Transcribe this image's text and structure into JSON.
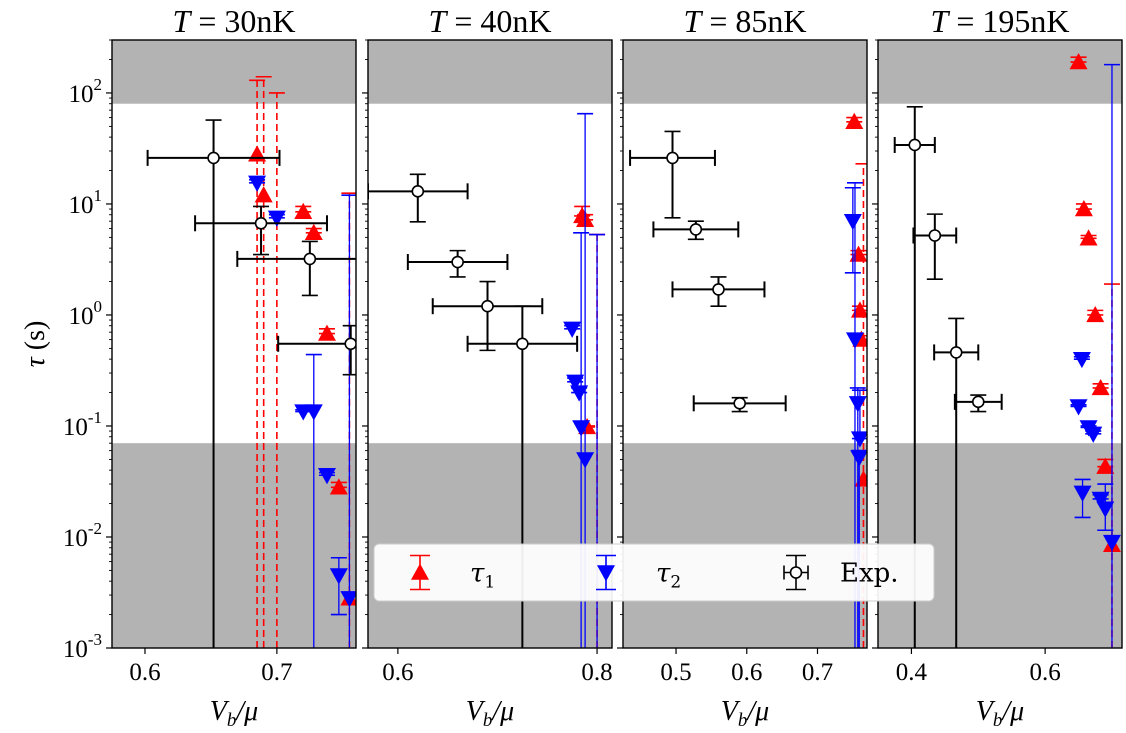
{
  "chart_data": {
    "type": "scatter",
    "y_label": "τ (s)",
    "y_scale": "log",
    "ylim": [
      0.001,
      300
    ],
    "y_ticks": [
      {
        "value": 0.001,
        "label": "10",
        "exp": "-3"
      },
      {
        "value": 0.01,
        "label": "10",
        "exp": "-2"
      },
      {
        "value": 0.1,
        "label": "10",
        "exp": "-1"
      },
      {
        "value": 1,
        "label": "10",
        "exp": "0"
      },
      {
        "value": 10,
        "label": "10",
        "exp": "1"
      },
      {
        "value": 100,
        "label": "10",
        "exp": "2"
      }
    ],
    "shaded_bands": [
      [
        80,
        300
      ],
      [
        0.001,
        0.07
      ]
    ],
    "colors": {
      "tau1": "#ff0000",
      "tau2": "#0000ff",
      "exp": "#000000",
      "shade": "#b3b3b3"
    },
    "legend": {
      "placement": "lower-right",
      "entries": [
        {
          "name": "τ",
          "sub": "1",
          "marker": "triangle-up",
          "color": "#ff0000"
        },
        {
          "name": "τ",
          "sub": "2",
          "marker": "triangle-down",
          "color": "#0000ff"
        },
        {
          "name": "Exp.",
          "sub": "",
          "marker": "circle-open",
          "color": "#000000"
        }
      ]
    },
    "panels": [
      {
        "title_var": "T",
        "title_value": "= 30nK",
        "xlabel": "V_b/μ",
        "xlim": [
          0.575,
          0.76
        ],
        "x_ticks": [
          {
            "value": 0.6,
            "label": "0.6"
          },
          {
            "value": 0.7,
            "label": "0.7"
          }
        ],
        "tau1": [
          {
            "x": 0.685,
            "y": 28,
            "yerr_lo": null,
            "yerr_hi": 130,
            "dashed": true
          },
          {
            "x": 0.69,
            "y": 12,
            "yerr_lo": null,
            "yerr_hi": 140,
            "dashed": true
          },
          {
            "x": 0.72,
            "y": 8.5,
            "yerr_lo": null,
            "yerr_hi": 9.5
          },
          {
            "x": 0.7,
            "y": null,
            "yerr_lo": null,
            "yerr_hi": 100,
            "dashed": true
          },
          {
            "x": 0.728,
            "y": 5.5,
            "yerr_lo": null,
            "yerr_hi": 6.0
          },
          {
            "x": 0.738,
            "y": 0.68,
            "yerr_lo": null,
            "yerr_hi": 0.75
          },
          {
            "x": 0.747,
            "y": 0.028,
            "yerr_lo": null,
            "yerr_hi": 0.031
          },
          {
            "x": 0.755,
            "y": 0.0028,
            "yerr_lo": null,
            "yerr_hi": 12.5,
            "dashed": true
          }
        ],
        "tau2": [
          {
            "x": 0.685,
            "y": 15.5,
            "yerr_lo": null,
            "yerr_hi": 16.5
          },
          {
            "x": 0.7,
            "y": 7.5,
            "yerr_lo": null,
            "yerr_hi": 8.0
          },
          {
            "x": 0.72,
            "y": 0.135,
            "yerr_lo": null,
            "yerr_hi": 0.14
          },
          {
            "x": 0.728,
            "y": 0.135,
            "yerr_lo": 0.001,
            "yerr_hi": 0.44
          },
          {
            "x": 0.738,
            "y": 0.036,
            "yerr_lo": null,
            "yerr_hi": 0.038
          },
          {
            "x": 0.747,
            "y": 0.0045,
            "yerr_lo": 0.002,
            "yerr_hi": 0.0065
          },
          {
            "x": 0.755,
            "y": 0.0028,
            "yerr_lo": 0.001,
            "yerr_hi": 12
          }
        ],
        "exp": [
          {
            "x": 0.652,
            "y": 26,
            "xerr": 0.05,
            "yerr_lo": 0.001,
            "yerr_hi": 57
          },
          {
            "x": 0.688,
            "y": 6.7,
            "xerr": 0.05,
            "yerr_lo": 3.5,
            "yerr_hi": 9.5
          },
          {
            "x": 0.725,
            "y": 3.2,
            "xerr": 0.055,
            "yerr_lo": 1.5,
            "yerr_hi": 4.6
          },
          {
            "x": 0.756,
            "y": 0.55,
            "xerr": 0.055,
            "yerr_lo": 0.29,
            "yerr_hi": 0.8
          }
        ]
      },
      {
        "title_var": "T",
        "title_value": "= 40nK",
        "xlabel": "V_b/μ",
        "xlim": [
          0.57,
          0.815
        ],
        "x_ticks": [
          {
            "value": 0.6,
            "label": "0.6"
          },
          {
            "value": 0.8,
            "label": "0.8"
          }
        ],
        "tau1": [
          {
            "x": 0.785,
            "y": 7.8,
            "yerr_lo": null,
            "yerr_hi": 9.5
          },
          {
            "x": 0.788,
            "y": 7.2,
            "yerr_lo": null,
            "yerr_hi": 8.0
          },
          {
            "x": 0.79,
            "y": 0.098,
            "yerr_lo": null,
            "yerr_hi": 0.1
          },
          {
            "x": 0.8,
            "y": null,
            "yerr_lo": null,
            "yerr_hi": 5.3,
            "dashed": true
          }
        ],
        "tau2": [
          {
            "x": 0.775,
            "y": 0.75,
            "yerr_lo": null,
            "yerr_hi": 0.8
          },
          {
            "x": 0.778,
            "y": 0.25,
            "yerr_lo": null,
            "yerr_hi": 0.27
          },
          {
            "x": 0.782,
            "y": 0.2,
            "yerr_lo": null,
            "yerr_hi": 0.22
          },
          {
            "x": 0.784,
            "y": 0.097,
            "yerr_lo": 0.001,
            "yerr_hi": 5.5
          },
          {
            "x": 0.788,
            "y": 0.05,
            "yerr_lo": 0.001,
            "yerr_hi": 65
          },
          {
            "x": 0.8,
            "y": null,
            "yerr_lo": 0.001,
            "yerr_hi": 5.3
          }
        ],
        "exp": [
          {
            "x": 0.62,
            "y": 13,
            "xerr": 0.05,
            "yerr_lo": 6.9,
            "yerr_hi": 18.5
          },
          {
            "x": 0.66,
            "y": 3.0,
            "xerr": 0.05,
            "yerr_lo": 2.2,
            "yerr_hi": 3.8
          },
          {
            "x": 0.69,
            "y": 1.2,
            "xerr": 0.055,
            "yerr_lo": 0.48,
            "yerr_hi": 2.0
          },
          {
            "x": 0.725,
            "y": 0.55,
            "xerr": 0.055,
            "yerr_lo": 0.001,
            "yerr_hi": 1.2
          }
        ]
      },
      {
        "title_var": "T",
        "title_value": "= 85nK",
        "xlabel": "V_b/μ",
        "xlim": [
          0.425,
          0.77
        ],
        "x_ticks": [
          {
            "value": 0.5,
            "label": "0.5"
          },
          {
            "value": 0.6,
            "label": "0.6"
          },
          {
            "value": 0.7,
            "label": "0.7"
          }
        ],
        "tau1": [
          {
            "x": 0.752,
            "y": 55,
            "yerr_lo": null,
            "yerr_hi": 60
          },
          {
            "x": 0.758,
            "y": 3.5,
            "yerr_lo": null,
            "yerr_hi": 3.8
          },
          {
            "x": 0.76,
            "y": 1.1,
            "yerr_lo": null,
            "yerr_hi": 1.2
          },
          {
            "x": 0.762,
            "y": 0.6,
            "yerr_lo": null,
            "yerr_hi": 0.65
          },
          {
            "x": 0.765,
            "y": 0.033,
            "yerr_lo": null,
            "yerr_hi": 23,
            "dashed": true
          }
        ],
        "tau2": [
          {
            "x": 0.75,
            "y": 7.0,
            "yerr_lo": 2.4,
            "yerr_hi": 14
          },
          {
            "x": 0.753,
            "y": 0.6,
            "yerr_lo": 0.001,
            "yerr_hi": 15.5
          },
          {
            "x": 0.757,
            "y": 0.16,
            "yerr_lo": 0.001,
            "yerr_hi": 0.22
          },
          {
            "x": 0.76,
            "y": 0.077,
            "yerr_lo": null,
            "yerr_hi": 0.21
          },
          {
            "x": 0.759,
            "y": 0.052,
            "yerr_lo": 0.001,
            "yerr_hi": 0.06
          }
        ],
        "exp": [
          {
            "x": 0.495,
            "y": 26,
            "xerr": 0.06,
            "yerr_lo": 7.5,
            "yerr_hi": 45
          },
          {
            "x": 0.528,
            "y": 5.9,
            "xerr": 0.06,
            "yerr_lo": 4.8,
            "yerr_hi": 7.0
          },
          {
            "x": 0.56,
            "y": 1.7,
            "xerr": 0.065,
            "yerr_lo": 1.2,
            "yerr_hi": 2.2
          },
          {
            "x": 0.59,
            "y": 0.16,
            "xerr": 0.065,
            "yerr_lo": 0.135,
            "yerr_hi": 0.18
          }
        ]
      },
      {
        "title_var": "T",
        "title_value": "= 195nK",
        "xlabel": "V_b/μ",
        "xlim": [
          0.35,
          0.715
        ],
        "x_ticks": [
          {
            "value": 0.4,
            "label": "0.4"
          },
          {
            "value": 0.6,
            "label": "0.6"
          }
        ],
        "tau1": [
          {
            "x": 0.65,
            "y": 190,
            "yerr_lo": null,
            "yerr_hi": 210
          },
          {
            "x": 0.658,
            "y": 9,
            "yerr_lo": null,
            "yerr_hi": 10
          },
          {
            "x": 0.665,
            "y": 4.9,
            "yerr_lo": null,
            "yerr_hi": 5.2
          },
          {
            "x": 0.675,
            "y": 1.0,
            "yerr_lo": null,
            "yerr_hi": 1.1
          },
          {
            "x": 0.683,
            "y": 0.22,
            "yerr_lo": null,
            "yerr_hi": 0.24
          },
          {
            "x": 0.69,
            "y": 0.043,
            "yerr_lo": null,
            "yerr_hi": 0.05
          },
          {
            "x": 0.7,
            "y": 0.0085,
            "yerr_lo": null,
            "yerr_hi": 1.9,
            "dashed": true
          }
        ],
        "tau2": [
          {
            "x": 0.655,
            "y": 0.4,
            "yerr_lo": null,
            "yerr_hi": 0.42
          },
          {
            "x": 0.65,
            "y": 0.15,
            "yerr_lo": null,
            "yerr_hi": 0.155
          },
          {
            "x": 0.665,
            "y": 0.097,
            "yerr_lo": null,
            "yerr_hi": 0.1
          },
          {
            "x": 0.672,
            "y": 0.085,
            "yerr_lo": null,
            "yerr_hi": 0.09
          },
          {
            "x": 0.656,
            "y": 0.025,
            "yerr_lo": 0.015,
            "yerr_hi": 0.033
          },
          {
            "x": 0.683,
            "y": 0.022,
            "yerr_lo": null,
            "yerr_hi": 0.024
          },
          {
            "x": 0.69,
            "y": 0.018,
            "yerr_lo": 0.0115,
            "yerr_hi": 0.03
          },
          {
            "x": 0.7,
            "y": 0.009,
            "yerr_lo": 0.001,
            "yerr_hi": 180
          }
        ],
        "exp": [
          {
            "x": 0.405,
            "y": 34,
            "xerr": 0.03,
            "yerr_lo": 0.001,
            "yerr_hi": 75
          },
          {
            "x": 0.435,
            "y": 5.2,
            "xerr": 0.032,
            "yerr_lo": 2.1,
            "yerr_hi": 8.1
          },
          {
            "x": 0.467,
            "y": 0.46,
            "xerr": 0.033,
            "yerr_lo": 0.001,
            "yerr_hi": 0.93
          },
          {
            "x": 0.5,
            "y": 0.165,
            "xerr": 0.035,
            "yerr_lo": 0.135,
            "yerr_hi": 0.19
          }
        ]
      }
    ]
  }
}
